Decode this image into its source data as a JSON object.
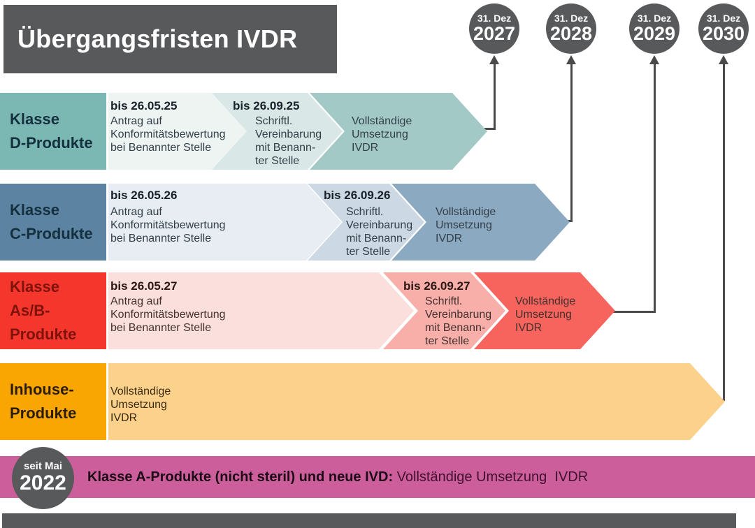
{
  "title": "Übergangsfristen IVDR",
  "milestones": [
    {
      "label": "31. Dez",
      "year": "2027"
    },
    {
      "label": "31. Dez",
      "year": "2028"
    },
    {
      "label": "31. Dez",
      "year": "2029"
    },
    {
      "label": "31. Dez",
      "year": "2030"
    }
  ],
  "rows": [
    {
      "name": "Klasse D-Produkte",
      "label_lines": [
        "Klasse",
        "D-Produkte"
      ],
      "segments": [
        {
          "heading": "bis 26.05.25",
          "lines": [
            "Antrag auf",
            "Konformitätsbewertung",
            "bei Benannter Stelle"
          ]
        },
        {
          "heading": "bis 26.09.25",
          "lines": [
            "Schriftl.",
            "Vereinbarung",
            "mit Benann-",
            "ter Stelle"
          ]
        },
        {
          "heading": "",
          "lines": [
            "Vollständige",
            "Umsetzung",
            "IVDR"
          ]
        }
      ]
    },
    {
      "name": "Klasse C-Produkte",
      "label_lines": [
        "Klasse",
        "C-Produkte"
      ],
      "segments": [
        {
          "heading": "bis 26.05.26",
          "lines": [
            "Antrag auf",
            "Konformitätsbewertung",
            "bei Benannter Stelle"
          ]
        },
        {
          "heading": "bis 26.09.26",
          "lines": [
            "Schriftl.",
            "Vereinbarung",
            "mit Benann-",
            "ter Stelle"
          ]
        },
        {
          "heading": "",
          "lines": [
            "Vollständige",
            "Umsetzung",
            "IVDR"
          ]
        }
      ]
    },
    {
      "name": "Klasse As/B-Produkte",
      "label_lines": [
        "Klasse",
        "As/B-",
        "Produkte"
      ],
      "segments": [
        {
          "heading": "bis 26.05.27",
          "lines": [
            "Antrag auf",
            "Konformitätsbewertung",
            "bei Benannter Stelle"
          ]
        },
        {
          "heading": "bis 26.09.27",
          "lines": [
            "Schriftl.",
            "Vereinbarung",
            "mit Benann-",
            "ter Stelle"
          ]
        },
        {
          "heading": "",
          "lines": [
            "Vollständige",
            "Umsetzung",
            "IVDR"
          ]
        }
      ]
    },
    {
      "name": "Inhouse-Produkte",
      "label_lines": [
        "Inhouse-",
        "Produkte"
      ],
      "segments": [
        {
          "heading": "",
          "lines": [
            "Vollständige",
            "Umsetzung",
            "IVDR"
          ]
        }
      ]
    }
  ],
  "baseline": {
    "badge_label": "seit Mai",
    "badge_year": "2022",
    "text_bold": "Klasse A-Produkte (nicht steril) und neue IVD:",
    "text_regular": " Vollständige Umsetzung  IVDR"
  },
  "colors": {
    "dark": "#58595B",
    "line": "#4A4A4A",
    "d_label": "#7CB8B3",
    "d_s1": "#EEF4F2",
    "d_s2": "#D9E8E6",
    "d_s3": "#A2C9C6",
    "d_text": "#14303E",
    "c_label": "#5D83A2",
    "c_s1": "#E7EDF2",
    "c_s2": "#CCD9E4",
    "c_s3": "#8CA9C2",
    "c_text": "#14303E",
    "ab_label": "#F5362D",
    "ab_s1": "#FADFDC",
    "ab_s2": "#F8AFAA",
    "ab_s3": "#F6645D",
    "ab_text": "#7E130C",
    "in_label": "#F9A603",
    "in_body": "#FBD18B",
    "in_text": "#2A1D02",
    "pink": "#CC5F9B",
    "heading_text": "#182129",
    "body_text": "#333F48",
    "ab_heading": "#2A1714",
    "ab_body": "#44312E",
    "in_line_text": "#3A2C10",
    "band_bold": "#1C0A16",
    "band_regular": "#41102F"
  }
}
